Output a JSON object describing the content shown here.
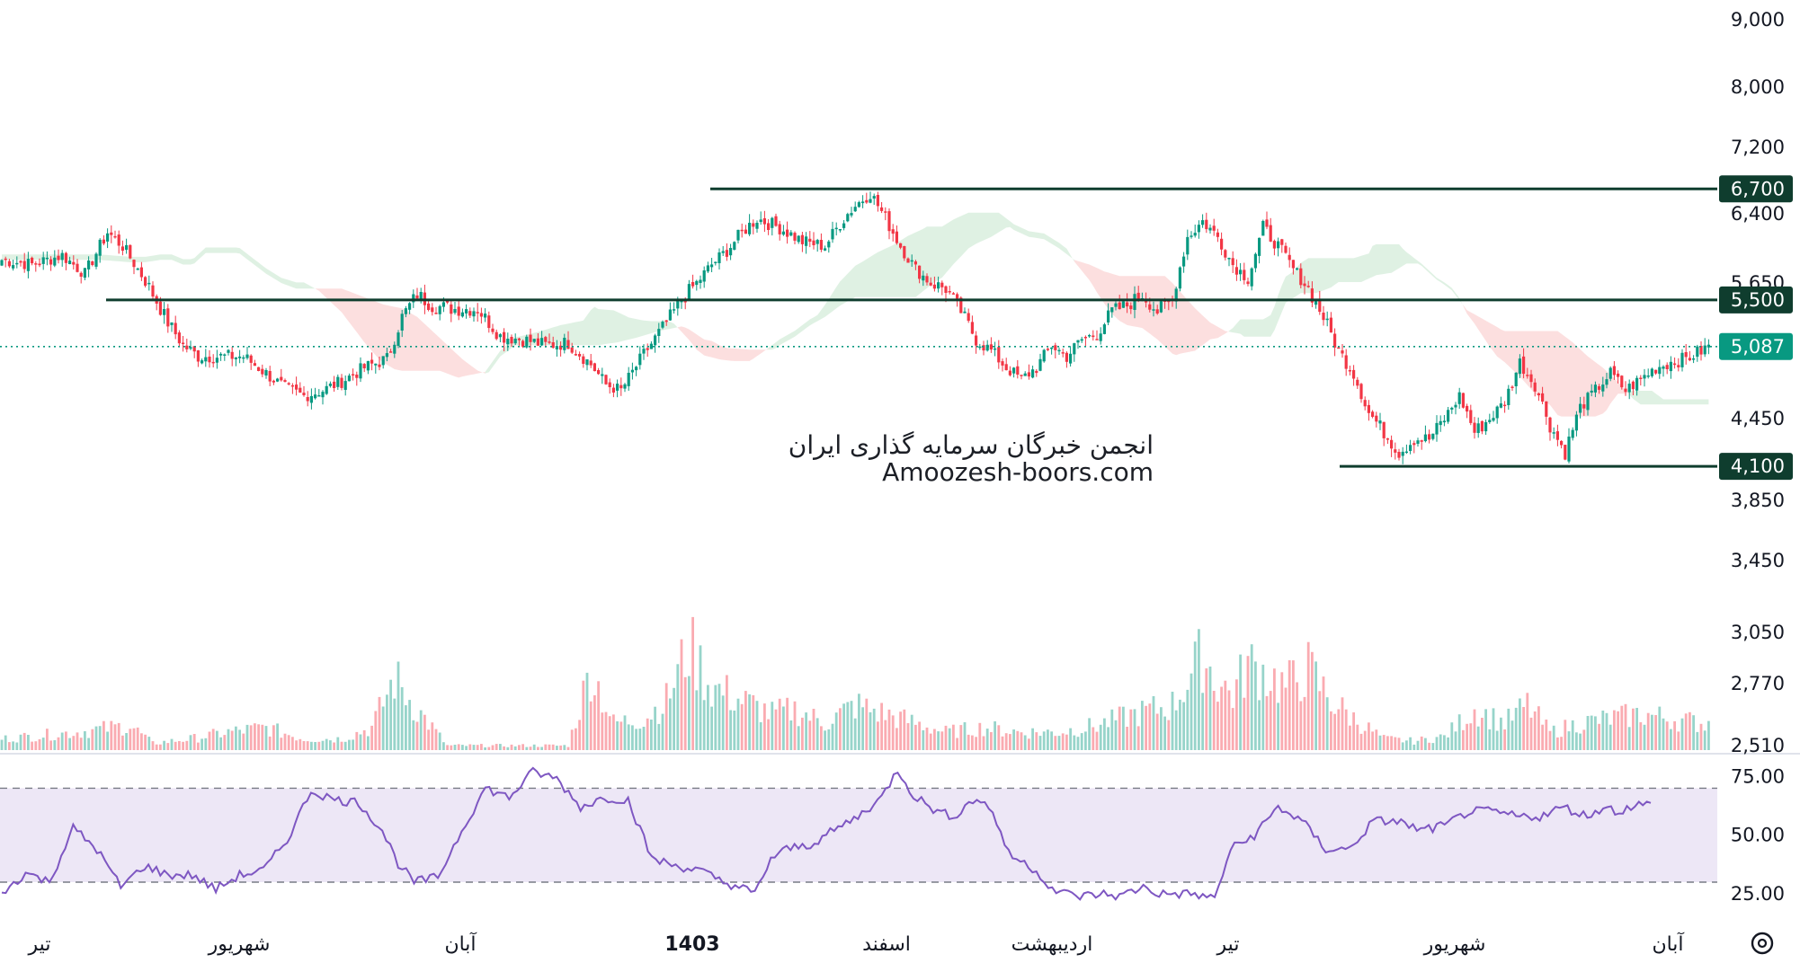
{
  "chart_data": [
    {
      "type": "candlestick",
      "pane": "price",
      "y_ticks": [
        "9,000",
        "8,000",
        "7,200",
        "6,400",
        "5,650",
        "4,450",
        "3,850",
        "3,450",
        "3,050",
        "2,770",
        "2,510"
      ],
      "y_tick_values": [
        9000,
        8000,
        7200,
        6400,
        5650,
        4450,
        3850,
        3450,
        3050,
        2770,
        2510
      ],
      "y_scale": "log",
      "ylim": [
        2510,
        9000
      ],
      "x_ticks": [
        {
          "label": "تیر",
          "bold": false
        },
        {
          "label": "شهریور",
          "bold": false
        },
        {
          "label": "آبان",
          "bold": false
        },
        {
          "label": "1403",
          "bold": true
        },
        {
          "label": "اسفند",
          "bold": false
        },
        {
          "label": "اردیبهشت",
          "bold": false
        },
        {
          "label": "تیر",
          "bold": false
        },
        {
          "label": "شهریور",
          "bold": false
        },
        {
          "label": "آبان",
          "bold": false
        }
      ],
      "levels": [
        {
          "label": "6,700",
          "value": 6700,
          "color": "#0f3d2e"
        },
        {
          "label": "5,500",
          "value": 5500,
          "color": "#0f3d2e"
        },
        {
          "label": "4,100",
          "value": 4100,
          "color": "#0f3d2e"
        }
      ],
      "last_price": {
        "label": "5,087",
        "value": 5087,
        "color": "#089981"
      },
      "close_path": [
        [
          0,
          5900
        ],
        [
          8,
          5850
        ],
        [
          16,
          5950
        ],
        [
          22,
          5750
        ],
        [
          28,
          6200
        ],
        [
          32,
          6050
        ],
        [
          36,
          5800
        ],
        [
          40,
          5550
        ],
        [
          44,
          5300
        ],
        [
          48,
          5100
        ],
        [
          52,
          5000
        ],
        [
          56,
          5000
        ],
        [
          60,
          5000
        ],
        [
          64,
          5000
        ],
        [
          70,
          4850
        ],
        [
          75,
          4720
        ],
        [
          80,
          4650
        ],
        [
          85,
          4700
        ],
        [
          90,
          4780
        ],
        [
          96,
          4900
        ],
        [
          102,
          4980
        ],
        [
          106,
          5350
        ],
        [
          110,
          5550
        ],
        [
          114,
          5450
        ],
        [
          120,
          5420
        ],
        [
          126,
          5420
        ],
        [
          132,
          5180
        ],
        [
          138,
          5150
        ],
        [
          144,
          5100
        ],
        [
          150,
          5120
        ],
        [
          156,
          4930
        ],
        [
          160,
          4750
        ],
        [
          164,
          4700
        ],
        [
          170,
          5020
        ],
        [
          176,
          5300
        ],
        [
          180,
          5500
        ],
        [
          184,
          5650
        ],
        [
          188,
          5850
        ],
        [
          192,
          6000
        ],
        [
          196,
          6200
        ],
        [
          200,
          6350
        ],
        [
          206,
          6250
        ],
        [
          212,
          6100
        ],
        [
          218,
          6050
        ],
        [
          222,
          6300
        ],
        [
          226,
          6500
        ],
        [
          230,
          6650
        ],
        [
          234,
          6350
        ],
        [
          238,
          6050
        ],
        [
          242,
          5800
        ],
        [
          246,
          5650
        ],
        [
          250,
          5600
        ],
        [
          254,
          5400
        ],
        [
          258,
          5150
        ],
        [
          262,
          5050
        ],
        [
          266,
          4900
        ],
        [
          270,
          4800
        ],
        [
          274,
          4900
        ],
        [
          278,
          5100
        ],
        [
          282,
          5000
        ],
        [
          286,
          5150
        ],
        [
          290,
          5200
        ],
        [
          294,
          5400
        ],
        [
          298,
          5450
        ],
        [
          302,
          5550
        ],
        [
          306,
          5400
        ],
        [
          310,
          5500
        ],
        [
          314,
          6150
        ],
        [
          318,
          6320
        ],
        [
          322,
          6150
        ],
        [
          326,
          5850
        ],
        [
          330,
          5700
        ],
        [
          334,
          6250
        ],
        [
          338,
          6050
        ],
        [
          342,
          5800
        ],
        [
          346,
          5600
        ],
        [
          350,
          5350
        ],
        [
          354,
          5050
        ],
        [
          358,
          4850
        ],
        [
          362,
          4500
        ],
        [
          366,
          4350
        ],
        [
          370,
          4200
        ],
        [
          374,
          4300
        ],
        [
          378,
          4300
        ],
        [
          382,
          4450
        ],
        [
          386,
          4650
        ],
        [
          390,
          4350
        ],
        [
          394,
          4450
        ],
        [
          398,
          4600
        ],
        [
          402,
          4950
        ],
        [
          406,
          4750
        ],
        [
          410,
          4400
        ],
        [
          414,
          4200
        ],
        [
          418,
          4550
        ],
        [
          422,
          4700
        ],
        [
          426,
          4850
        ],
        [
          430,
          4700
        ],
        [
          434,
          4800
        ],
        [
          438,
          4900
        ],
        [
          442,
          4950
        ],
        [
          446,
          4980
        ],
        [
          450,
          5050
        ],
        [
          452,
          5087
        ]
      ],
      "volume_path": [
        [
          0,
          0.05
        ],
        [
          20,
          0.08
        ],
        [
          34,
          0.11
        ],
        [
          40,
          0.03
        ],
        [
          50,
          0.05
        ],
        [
          60,
          0.08
        ],
        [
          70,
          0.1
        ],
        [
          80,
          0.05
        ],
        [
          90,
          0.05
        ],
        [
          98,
          0.1
        ],
        [
          104,
          0.32
        ],
        [
          110,
          0.18
        ],
        [
          118,
          0.02
        ],
        [
          128,
          0.02
        ],
        [
          140,
          0.02
        ],
        [
          150,
          0.02
        ],
        [
          156,
          0.36
        ],
        [
          162,
          0.12
        ],
        [
          170,
          0.14
        ],
        [
          176,
          0.22
        ],
        [
          182,
          0.46
        ],
        [
          188,
          0.28
        ],
        [
          196,
          0.22
        ],
        [
          204,
          0.16
        ],
        [
          210,
          0.18
        ],
        [
          218,
          0.12
        ],
        [
          226,
          0.2
        ],
        [
          234,
          0.16
        ],
        [
          242,
          0.12
        ],
        [
          250,
          0.08
        ],
        [
          260,
          0.1
        ],
        [
          270,
          0.08
        ],
        [
          280,
          0.08
        ],
        [
          290,
          0.11
        ],
        [
          300,
          0.16
        ],
        [
          310,
          0.2
        ],
        [
          318,
          0.42
        ],
        [
          322,
          0.3
        ],
        [
          326,
          0.25
        ],
        [
          330,
          0.38
        ],
        [
          334,
          0.35
        ],
        [
          340,
          0.28
        ],
        [
          346,
          0.36
        ],
        [
          352,
          0.22
        ],
        [
          358,
          0.14
        ],
        [
          366,
          0.05
        ],
        [
          374,
          0.04
        ],
        [
          382,
          0.06
        ],
        [
          390,
          0.18
        ],
        [
          398,
          0.12
        ],
        [
          404,
          0.2
        ],
        [
          410,
          0.08
        ],
        [
          418,
          0.12
        ],
        [
          426,
          0.14
        ],
        [
          434,
          0.16
        ],
        [
          442,
          0.14
        ],
        [
          450,
          0.12
        ]
      ]
    },
    {
      "type": "line",
      "pane": "rsi",
      "y_ticks": [
        "75.00",
        "50.00",
        "25.00"
      ],
      "y_tick_values": [
        75,
        50,
        25
      ],
      "ylim": [
        17,
        82
      ],
      "band": [
        30,
        70
      ],
      "values_path": [
        [
          0,
          25
        ],
        [
          6,
          34
        ],
        [
          12,
          30
        ],
        [
          18,
          53
        ],
        [
          24,
          44
        ],
        [
          30,
          28
        ],
        [
          36,
          37
        ],
        [
          42,
          33
        ],
        [
          48,
          33
        ],
        [
          54,
          27
        ],
        [
          60,
          33
        ],
        [
          66,
          35
        ],
        [
          72,
          48
        ],
        [
          78,
          69
        ],
        [
          84,
          65
        ],
        [
          90,
          64
        ],
        [
          96,
          52
        ],
        [
          100,
          38
        ],
        [
          104,
          30
        ],
        [
          110,
          32
        ],
        [
          116,
          52
        ],
        [
          122,
          70
        ],
        [
          128,
          66
        ],
        [
          134,
          77
        ],
        [
          140,
          74
        ],
        [
          146,
          62
        ],
        [
          152,
          66
        ],
        [
          158,
          65
        ],
        [
          164,
          40
        ],
        [
          170,
          37
        ],
        [
          176,
          35
        ],
        [
          182,
          30
        ],
        [
          186,
          28
        ],
        [
          190,
          25
        ],
        [
          194,
          40
        ],
        [
          198,
          44
        ],
        [
          204,
          46
        ],
        [
          210,
          52
        ],
        [
          216,
          58
        ],
        [
          222,
          66
        ],
        [
          226,
          78
        ],
        [
          230,
          67
        ],
        [
          236,
          60
        ],
        [
          240,
          58
        ],
        [
          246,
          66
        ],
        [
          250,
          60
        ],
        [
          254,
          42
        ],
        [
          260,
          36
        ],
        [
          266,
          26
        ],
        [
          272,
          24
        ],
        [
          278,
          25
        ],
        [
          282,
          24
        ],
        [
          288,
          28
        ],
        [
          292,
          25
        ],
        [
          300,
          25
        ],
        [
          306,
          23
        ],
        [
          310,
          44
        ],
        [
          316,
          50
        ],
        [
          322,
          62
        ],
        [
          328,
          56
        ],
        [
          334,
          44
        ],
        [
          340,
          44
        ],
        [
          346,
          56
        ],
        [
          352,
          56
        ],
        [
          358,
          52
        ],
        [
          364,
          54
        ],
        [
          370,
          60
        ],
        [
          376,
          60
        ],
        [
          382,
          58
        ],
        [
          388,
          58
        ],
        [
          394,
          62
        ],
        [
          400,
          58
        ],
        [
          404,
          62
        ],
        [
          408,
          60
        ],
        [
          412,
          63
        ],
        [
          416,
          63
        ]
      ]
    }
  ],
  "watermark": {
    "line1": "انجمن خبرگان سرمایه گذاری ایران",
    "line2": "Amoozesh-boors.com"
  },
  "colors": {
    "up": "#089981",
    "down": "#f23645",
    "cloud_bear": "#f9c5c5",
    "cloud_bull": "#c4e5cc",
    "rsi_line": "#7e57c2",
    "rsi_band": "#ede7f6"
  },
  "logo_icon": "tradingview-settings-icon"
}
